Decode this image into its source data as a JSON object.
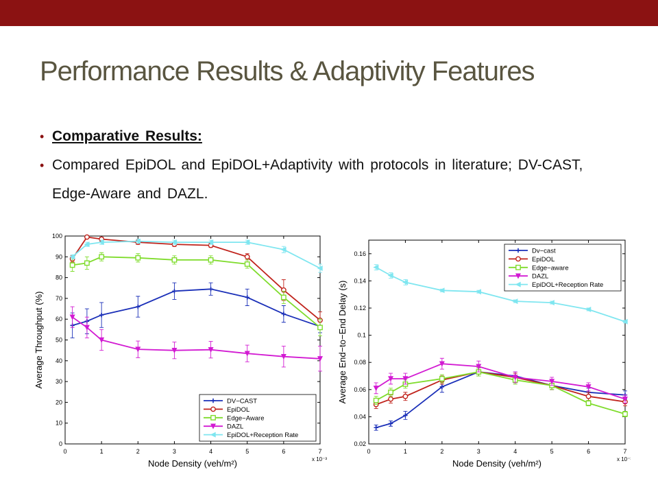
{
  "slide": {
    "title": "Performance Results & Adaptivity Features",
    "bullets": [
      "Comparative Results:",
      "Compared EpiDOL and EpiDOL+Adaptivity with protocols in literature; DV-CAST, Edge-Aware and DAZL."
    ],
    "colors": {
      "top_bar": "#8b1212",
      "title": "#595540"
    }
  },
  "chart_data": [
    {
      "type": "line",
      "xlabel": "Node Density (veh/m²)",
      "ylabel": "Average Throughput (%)",
      "x_multiplier": "x 10⁻³",
      "xlim": [
        0,
        7
      ],
      "ylim": [
        0,
        100
      ],
      "xticks": [
        0,
        1,
        2,
        3,
        4,
        5,
        6,
        7
      ],
      "yticks": [
        0,
        10,
        20,
        30,
        40,
        50,
        60,
        70,
        80,
        90,
        100
      ],
      "grid": false,
      "legend_position": "bottom-right",
      "series": [
        {
          "name": "DV−CAST",
          "color": "#1a2fb8",
          "marker": "plus",
          "x": [
            0.2,
            0.6,
            1,
            2,
            3,
            4,
            5,
            6,
            7
          ],
          "y": [
            57,
            59,
            62,
            66,
            73.5,
            74.5,
            70.5,
            62.5,
            56.5
          ],
          "err": [
            6,
            6,
            6,
            5,
            4,
            3,
            4,
            4,
            3
          ]
        },
        {
          "name": "EpiDOL",
          "color": "#c0221b",
          "marker": "circle",
          "x": [
            0.2,
            0.6,
            1,
            2,
            3,
            4,
            5,
            6,
            7
          ],
          "y": [
            89,
            99.5,
            98.5,
            97,
            96,
            95.5,
            90,
            74,
            59.5
          ],
          "err": [
            1.5,
            0.5,
            1,
            1,
            1,
            1,
            1.5,
            5,
            4
          ]
        },
        {
          "name": "Edge−Aware",
          "color": "#7fdc2c",
          "marker": "square",
          "x": [
            0.2,
            0.6,
            1,
            2,
            3,
            4,
            5,
            6,
            7
          ],
          "y": [
            86,
            87,
            90,
            89.5,
            88.5,
            88.5,
            86.5,
            70.5,
            56
          ],
          "err": [
            3,
            3,
            2,
            2,
            2,
            2,
            2,
            3,
            4
          ]
        },
        {
          "name": "DAZL",
          "color": "#d21ad2",
          "marker": "triangle-down",
          "x": [
            0.2,
            0.6,
            1,
            2,
            3,
            4,
            5,
            6,
            7
          ],
          "y": [
            61,
            56,
            50,
            45.5,
            45,
            45.3,
            43.5,
            42,
            41
          ],
          "err": [
            5,
            5,
            5,
            4,
            4,
            4,
            4,
            5,
            6
          ]
        },
        {
          "name": "EpiDOL+Reception Rate",
          "color": "#7fe6f0",
          "marker": "triangle-left",
          "x": [
            0.2,
            0.6,
            1,
            2,
            3,
            4,
            5,
            6,
            7
          ],
          "y": [
            90,
            96,
            97,
            97.5,
            97,
            97,
            97,
            93.5,
            84.5
          ],
          "err": [
            1,
            1,
            1,
            1,
            1,
            1,
            1,
            1.5,
            2
          ]
        }
      ]
    },
    {
      "type": "line",
      "xlabel": "Node Density (veh/m²)",
      "ylabel": "Average End−to−End Delay (s)",
      "x_multiplier": "x 10⁻³",
      "xlim": [
        0,
        7
      ],
      "ylim": [
        0.02,
        0.17
      ],
      "xticks": [
        0,
        1,
        2,
        3,
        4,
        5,
        6,
        7
      ],
      "yticks": [
        0.02,
        0.04,
        0.06,
        0.08,
        0.1,
        0.12,
        0.14,
        0.16
      ],
      "grid": false,
      "legend_position": "top-right",
      "series": [
        {
          "name": "Dv−cast",
          "color": "#1a2fb8",
          "marker": "plus",
          "x": [
            0.2,
            0.6,
            1,
            2,
            3,
            4,
            5,
            6,
            7
          ],
          "y": [
            0.032,
            0.035,
            0.041,
            0.062,
            0.073,
            0.07,
            0.063,
            0.058,
            0.056
          ],
          "err": [
            0.002,
            0.002,
            0.003,
            0.004,
            0.003,
            0.003,
            0.003,
            0.003,
            0.003
          ]
        },
        {
          "name": "EpiDOL",
          "color": "#c0221b",
          "marker": "circle",
          "x": [
            0.2,
            0.6,
            1,
            2,
            3,
            4,
            5,
            6,
            7
          ],
          "y": [
            0.049,
            0.053,
            0.055,
            0.067,
            0.073,
            0.069,
            0.063,
            0.055,
            0.051
          ],
          "err": [
            0.003,
            0.003,
            0.003,
            0.003,
            0.003,
            0.003,
            0.003,
            0.003,
            0.003
          ]
        },
        {
          "name": "Edge−aware",
          "color": "#7fdc2c",
          "marker": "square",
          "x": [
            0.2,
            0.6,
            1,
            2,
            3,
            4,
            5,
            6,
            7
          ],
          "y": [
            0.052,
            0.058,
            0.064,
            0.068,
            0.073,
            0.067,
            0.063,
            0.05,
            0.042
          ],
          "err": [
            0.003,
            0.003,
            0.003,
            0.003,
            0.003,
            0.003,
            0.003,
            0.002,
            0.002
          ]
        },
        {
          "name": "DAZL",
          "color": "#d21ad2",
          "marker": "triangle-down",
          "x": [
            0.2,
            0.6,
            1,
            2,
            3,
            4,
            5,
            6,
            7
          ],
          "y": [
            0.061,
            0.068,
            0.068,
            0.079,
            0.077,
            0.069,
            0.066,
            0.062,
            0.053
          ],
          "err": [
            0.004,
            0.004,
            0.004,
            0.004,
            0.004,
            0.004,
            0.003,
            0.003,
            0.003
          ]
        },
        {
          "name": "EpiDOL+Reception Rate",
          "color": "#7fe6f0",
          "marker": "triangle-left",
          "x": [
            0.2,
            0.6,
            1,
            2,
            3,
            4,
            5,
            6,
            7
          ],
          "y": [
            0.15,
            0.144,
            0.139,
            0.133,
            0.132,
            0.125,
            0.124,
            0.119,
            0.11
          ],
          "err": [
            0.002,
            0.002,
            0.002,
            0.001,
            0.001,
            0.001,
            0.001,
            0.001,
            0.001
          ]
        }
      ]
    }
  ]
}
